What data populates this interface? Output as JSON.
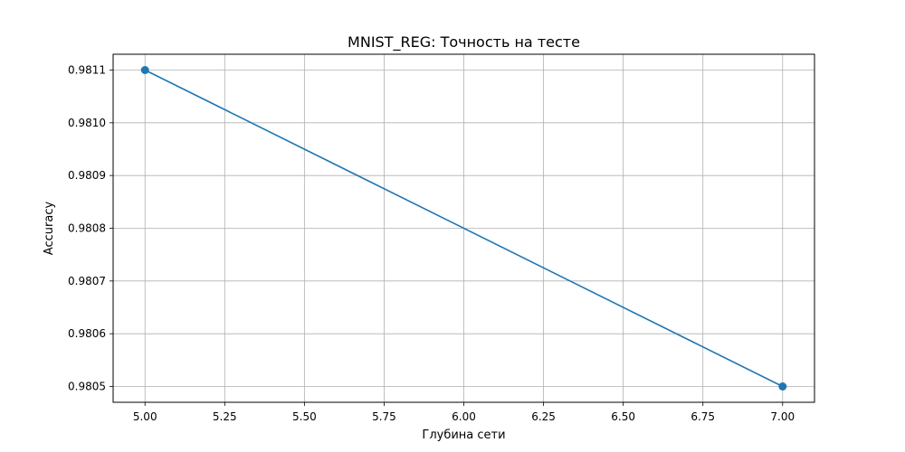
{
  "chart_data": {
    "type": "line",
    "title": "MNIST_REG: Точность на тесте",
    "xlabel": "Глубина сети",
    "ylabel": "Accuracy",
    "xlim": [
      4.9,
      7.1
    ],
    "ylim": [
      0.98047,
      0.98113
    ],
    "x_ticks": [
      5.0,
      5.25,
      5.5,
      5.75,
      6.0,
      6.25,
      6.5,
      6.75,
      7.0
    ],
    "x_tick_labels": [
      "5.00",
      "5.25",
      "5.50",
      "5.75",
      "6.00",
      "6.25",
      "6.50",
      "6.75",
      "7.00"
    ],
    "y_ticks": [
      0.9805,
      0.9806,
      0.9807,
      0.9808,
      0.9809,
      0.981,
      0.9811
    ],
    "y_tick_labels": [
      "0.9805",
      "0.9806",
      "0.9807",
      "0.9808",
      "0.9809",
      "0.9810",
      "0.9811"
    ],
    "grid": true,
    "series": [
      {
        "color": "#1f77b4",
        "marker": "circle",
        "points": [
          {
            "x": 5,
            "y": 0.9811
          },
          {
            "x": 7,
            "y": 0.9805
          }
        ]
      }
    ]
  }
}
